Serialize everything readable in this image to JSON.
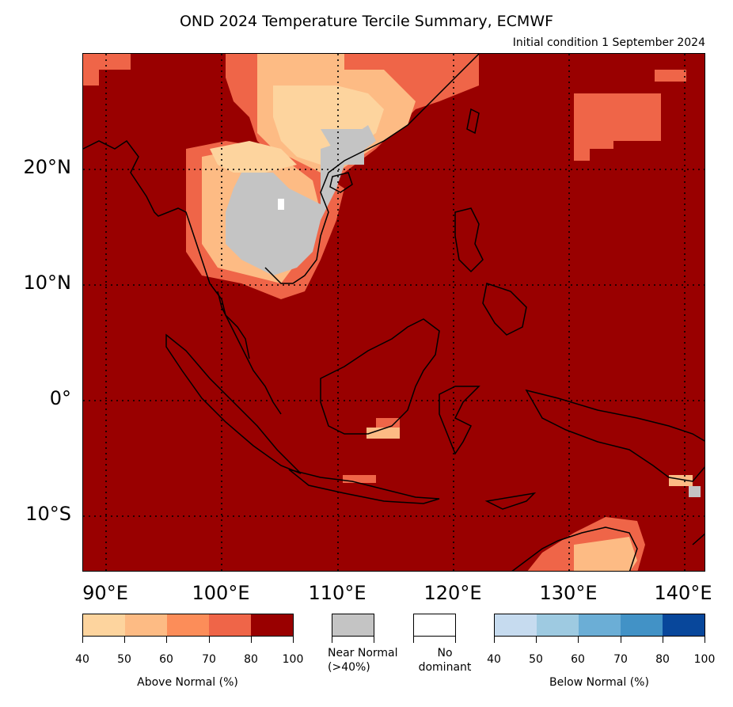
{
  "title": "OND 2024 Temperature Tercile Summary, ECMWF",
  "subtitle": "Initial condition 1 September 2024",
  "axes": {
    "lat_labels": [
      "20°N",
      "10°N",
      "0°",
      "10°S"
    ],
    "lon_labels": [
      "90°E",
      "100°E",
      "110°E",
      "120°E",
      "130°E",
      "140°E"
    ]
  },
  "legend": {
    "above": {
      "label": "Above Normal (%)",
      "ticks": [
        "40",
        "50",
        "60",
        "70",
        "80",
        "100"
      ],
      "colors": [
        "#fdd49e",
        "#fdbb84",
        "#fc8d59",
        "#ef6548",
        "#990000"
      ]
    },
    "near_normal": {
      "label_line1": "Near Normal",
      "label_line2": "(>40%)",
      "color": "#c4c4c4"
    },
    "no_dominant": {
      "label_line1": "No",
      "label_line2": "dominant",
      "color": "#ffffff"
    },
    "below": {
      "label": "Below Normal (%)",
      "ticks": [
        "40",
        "50",
        "60",
        "70",
        "80",
        "100"
      ],
      "colors": [
        "#c6dbef",
        "#9ecae1",
        "#6baed6",
        "#4292c6",
        "#08479b"
      ]
    }
  },
  "map": {
    "background_color": "#990000",
    "coast_color": "#000000",
    "grid_style": "dotted"
  }
}
